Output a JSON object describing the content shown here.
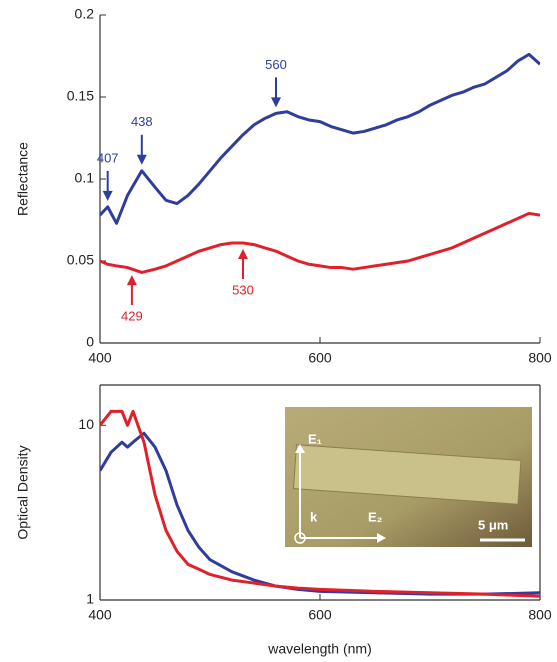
{
  "chart_data": [
    {
      "type": "line",
      "y_label": "Reflectance",
      "frame": "axes",
      "log": false,
      "xlim": [
        400,
        800
      ],
      "xticks": [
        400,
        600,
        800
      ],
      "ylim": [
        0,
        0.2
      ],
      "yticks": [
        0,
        0.05,
        0.1,
        0.15,
        0.2
      ],
      "x": [
        400,
        407,
        415,
        425,
        438,
        450,
        460,
        470,
        480,
        490,
        500,
        510,
        520,
        530,
        540,
        550,
        560,
        570,
        580,
        590,
        600,
        610,
        620,
        630,
        640,
        650,
        660,
        670,
        680,
        690,
        700,
        710,
        720,
        730,
        740,
        750,
        760,
        770,
        780,
        790,
        800
      ],
      "series": [
        {
          "color": "#2f3d9c",
          "peaks": [
            407,
            438,
            560
          ],
          "peak_side": "above",
          "values": [
            0.078,
            0.083,
            0.073,
            0.09,
            0.105,
            0.095,
            0.087,
            0.085,
            0.09,
            0.097,
            0.105,
            0.113,
            0.12,
            0.127,
            0.133,
            0.137,
            0.14,
            0.141,
            0.138,
            0.136,
            0.135,
            0.132,
            0.13,
            0.128,
            0.129,
            0.131,
            0.133,
            0.136,
            0.138,
            0.141,
            0.145,
            0.148,
            0.151,
            0.153,
            0.156,
            0.158,
            0.162,
            0.166,
            0.172,
            0.176,
            0.17
          ]
        },
        {
          "color": "#e0202a",
          "peaks": [
            429,
            530
          ],
          "peak_side": "below",
          "values": [
            0.05,
            0.048,
            0.047,
            0.046,
            0.043,
            0.045,
            0.047,
            0.05,
            0.053,
            0.056,
            0.058,
            0.06,
            0.061,
            0.061,
            0.06,
            0.058,
            0.056,
            0.053,
            0.05,
            0.048,
            0.047,
            0.046,
            0.046,
            0.045,
            0.046,
            0.047,
            0.048,
            0.049,
            0.05,
            0.052,
            0.054,
            0.056,
            0.058,
            0.061,
            0.064,
            0.067,
            0.07,
            0.073,
            0.076,
            0.079,
            0.078
          ]
        }
      ]
    },
    {
      "type": "line",
      "y_label": "Optical Density",
      "x_label": "wavelength (nm)",
      "frame": "full",
      "log": true,
      "xlim": [
        400,
        800
      ],
      "xticks": [
        400,
        600,
        800
      ],
      "ylim": [
        1,
        17
      ],
      "yticks": [
        1,
        10
      ],
      "x": [
        400,
        410,
        420,
        425,
        430,
        440,
        450,
        460,
        470,
        480,
        490,
        500,
        520,
        540,
        560,
        580,
        600,
        650,
        700,
        750,
        800
      ],
      "series": [
        {
          "color": "#2f3d9c",
          "values": [
            5.5,
            7,
            8,
            7.5,
            8,
            9,
            7.5,
            5.5,
            3.5,
            2.5,
            2,
            1.7,
            1.45,
            1.3,
            1.2,
            1.15,
            1.12,
            1.1,
            1.08,
            1.08,
            1.1
          ]
        },
        {
          "color": "#e0202a",
          "values": [
            10,
            12,
            12,
            10,
            12,
            8,
            4,
            2.5,
            1.9,
            1.6,
            1.5,
            1.4,
            1.3,
            1.25,
            1.2,
            1.17,
            1.15,
            1.12,
            1.1,
            1.08,
            1.05
          ]
        }
      ],
      "inset": {
        "labels": [
          "E₁",
          "k",
          "E₂",
          "5 μm"
        ]
      }
    }
  ]
}
